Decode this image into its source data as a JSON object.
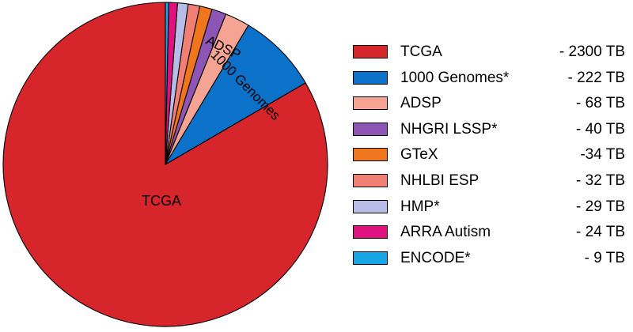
{
  "chart_data": {
    "type": "pie",
    "title": "",
    "slices": [
      {
        "name": "TCGA",
        "label": "TCGA",
        "value": 2300,
        "value_label": "- 2300 TB",
        "color": "#d7262b",
        "slice_label": "TCGA"
      },
      {
        "name": "1000 Genomes",
        "label": "1000 Genomes*",
        "value": 222,
        "value_label": "- 222 TB",
        "color": "#0c72c9",
        "slice_label": "1000 Genomes"
      },
      {
        "name": "ADSP",
        "label": "ADSP",
        "value": 68,
        "value_label": "- 68 TB",
        "color": "#f5a392",
        "slice_label": "ADSP"
      },
      {
        "name": "NHGRI LSSP",
        "label": "NHGRI LSSP*",
        "value": 40,
        "value_label": "- 40 TB",
        "color": "#8d55b4",
        "slice_label": ""
      },
      {
        "name": "GTeX",
        "label": "GTeX",
        "value": 34,
        "value_label": "-34 TB",
        "color": "#f0761e",
        "slice_label": ""
      },
      {
        "name": "NHLBI ESP",
        "label": "NHLBI ESP",
        "value": 32,
        "value_label": "- 32 TB",
        "color": "#f07f74",
        "slice_label": ""
      },
      {
        "name": "HMP",
        "label": "HMP*",
        "value": 29,
        "value_label": "- 29 TB",
        "color": "#b8bde8",
        "slice_label": ""
      },
      {
        "name": "ARRA Autism",
        "label": "ARRA Autism",
        "value": 24,
        "value_label": "- 24 TB",
        "color": "#e0127f",
        "slice_label": ""
      },
      {
        "name": "ENCODE",
        "label": "ENCODE*",
        "value": 9,
        "value_label": "- 9 TB",
        "color": "#16a6e6",
        "slice_label": ""
      }
    ],
    "legend_position": "right",
    "start_angle": "top",
    "direction": "clockwise"
  }
}
